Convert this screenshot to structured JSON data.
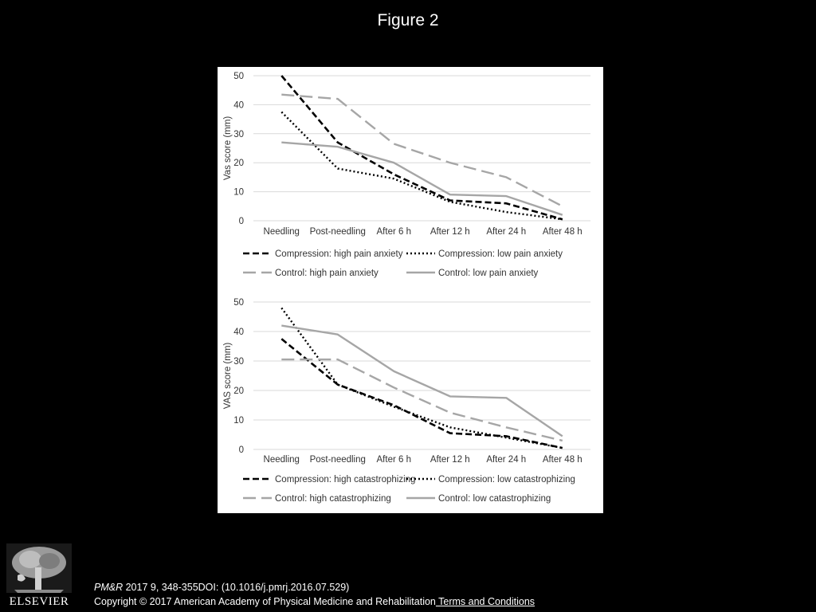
{
  "slide": {
    "title": "Figure 2",
    "citation_journal": "PM&R",
    "citation_rest": " 2017 9, 348-355DOI: (10.1016/j.pmrj.2016.07.529)",
    "copyright": "Copyright © 2017 American Academy of Physical Medicine and Rehabilitation",
    "terms_link": " Terms and Conditions",
    "logo_text": "ELSEVIER"
  },
  "colors": {
    "background": "#000000",
    "panel": "#ffffff",
    "compression": "#000000",
    "control": "#a6a6a6",
    "grid": "#d9d9d9"
  },
  "chart_data": [
    {
      "type": "line",
      "title": "",
      "xlabel": "",
      "ylabel": "Vas score (mm)",
      "ylim": [
        0,
        50
      ],
      "yticks": [
        0,
        10,
        20,
        30,
        40,
        50
      ],
      "grid": true,
      "legend_position": "bottom",
      "categories": [
        "Needling",
        "Post-needling",
        "After 6 h",
        "After 12 h",
        "After 24 h",
        "After 48 h"
      ],
      "series": [
        {
          "name": "Compression: high pain anxiety",
          "style": "dashed",
          "color": "#000000",
          "values": [
            50,
            27,
            16,
            7,
            6,
            0.5
          ]
        },
        {
          "name": "Compression: low pain anxiety",
          "style": "dotted",
          "color": "#000000",
          "values": [
            37.5,
            18,
            14.5,
            6.5,
            3,
            0.5
          ]
        },
        {
          "name": "Control: high pain anxiety",
          "style": "longdash",
          "color": "#a6a6a6",
          "values": [
            43.5,
            42,
            26.5,
            20,
            15,
            5
          ]
        },
        {
          "name": "Control: low pain anxiety",
          "style": "solid",
          "color": "#a6a6a6",
          "values": [
            27,
            25.5,
            20,
            9,
            8.5,
            2
          ]
        }
      ]
    },
    {
      "type": "line",
      "title": "",
      "xlabel": "",
      "ylabel": "VAS score  (mm)",
      "ylim": [
        0,
        50
      ],
      "yticks": [
        0,
        10,
        20,
        30,
        40,
        50
      ],
      "grid": true,
      "legend_position": "bottom",
      "categories": [
        "Needling",
        "Post-needling",
        "After 6 h",
        "After 12 h",
        "After 24 h",
        "After 48 h"
      ],
      "series": [
        {
          "name": "Compression: high catastrophizing",
          "style": "dashed",
          "color": "#000000",
          "values": [
            37.5,
            22,
            15,
            5.5,
            4.5,
            0.5
          ]
        },
        {
          "name": "Compression: low catastrophizing",
          "style": "dotted",
          "color": "#000000",
          "values": [
            48,
            22,
            14.5,
            7.5,
            4,
            0.5
          ]
        },
        {
          "name": "Control: high catastrophizing",
          "style": "longdash",
          "color": "#a6a6a6",
          "values": [
            30.5,
            30.5,
            21,
            12.5,
            7.5,
            3
          ]
        },
        {
          "name": "Control: low catastrophizing",
          "style": "solid",
          "color": "#a6a6a6",
          "values": [
            42,
            39,
            26.5,
            18,
            17.5,
            4.5
          ]
        }
      ]
    }
  ]
}
